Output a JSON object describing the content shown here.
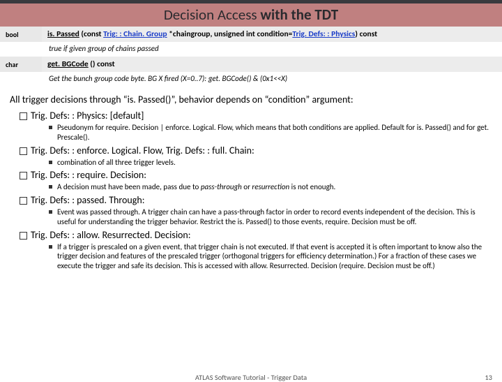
{
  "title": {
    "prefix": "Decision Access ",
    "bold": "with the TDT"
  },
  "api": [
    {
      "type": "bool",
      "sig": {
        "fn": "is. Passed",
        "open": " (const ",
        "link1": "Trig: : Chain. Group",
        "mid": " *chaingroup, unsigned int condition=",
        "link2": "Trig. Defs: : Physics",
        "close": ") const"
      },
      "desc": "true if given group of chains passed"
    },
    {
      "type": "char",
      "sig": {
        "fn": "get. BGCode",
        "open": " () const",
        "link1": "",
        "mid": "",
        "link2": "",
        "close": ""
      },
      "desc": "Get the bunch group code byte. BG X fired (X=0..7): get. BGCode() & (0x1<<X)"
    }
  ],
  "lead": "All trigger decisions through “is. Passed()”, behavior depends on “condition” argument:",
  "items": [
    {
      "label": "Trig. Defs: : Physics: [default]",
      "subs": [
        "Pseudonym for require. Decision | enforce. Logical. Flow, which means that both conditions are applied. Default for is. Passed() and for get. Prescale()."
      ]
    },
    {
      "label": "Trig. Defs: : enforce. Logical. Flow, Trig. Defs: : full. Chain:",
      "subs": [
        "combination of all three trigger levels."
      ]
    },
    {
      "label": "Trig. Defs: : require. Decision:",
      "subs": [
        "A decision must have been made, pass due to <i>pass-through</i> or <i>resurrection</i> is not enough."
      ]
    },
    {
      "label": "Trig. Defs: : passed. Through:",
      "subs": [
        "Event was passed through. A trigger chain can have a pass-through factor in order to record events independent of the decision. This is useful for understanding the trigger behavior. Restrict the is. Passed() to those events, require. Decision must be off."
      ]
    },
    {
      "label": "Trig. Defs: : allow. Resurrected. Decision:",
      "subs": [
        "If a trigger is prescaled on a given event, that trigger chain is not executed. If that event is accepted it is often important to know also the trigger decision and features of the prescaled trigger (orthogonal triggers for efficiency determination.) For a fraction of these cases we execute the trigger and safe its decision. This is accessed with allow. Resurrected. Decision (require. Decision must be off.)"
      ]
    }
  ],
  "footer": {
    "center": "ATLAS Software Tutorial - Trigger Data",
    "page": "13"
  },
  "colors": {
    "titlebar_bg": "#c08080",
    "titlebar_border": "#3a3a3e",
    "row_bg": "#ececec",
    "link": "#1a3cc8"
  }
}
